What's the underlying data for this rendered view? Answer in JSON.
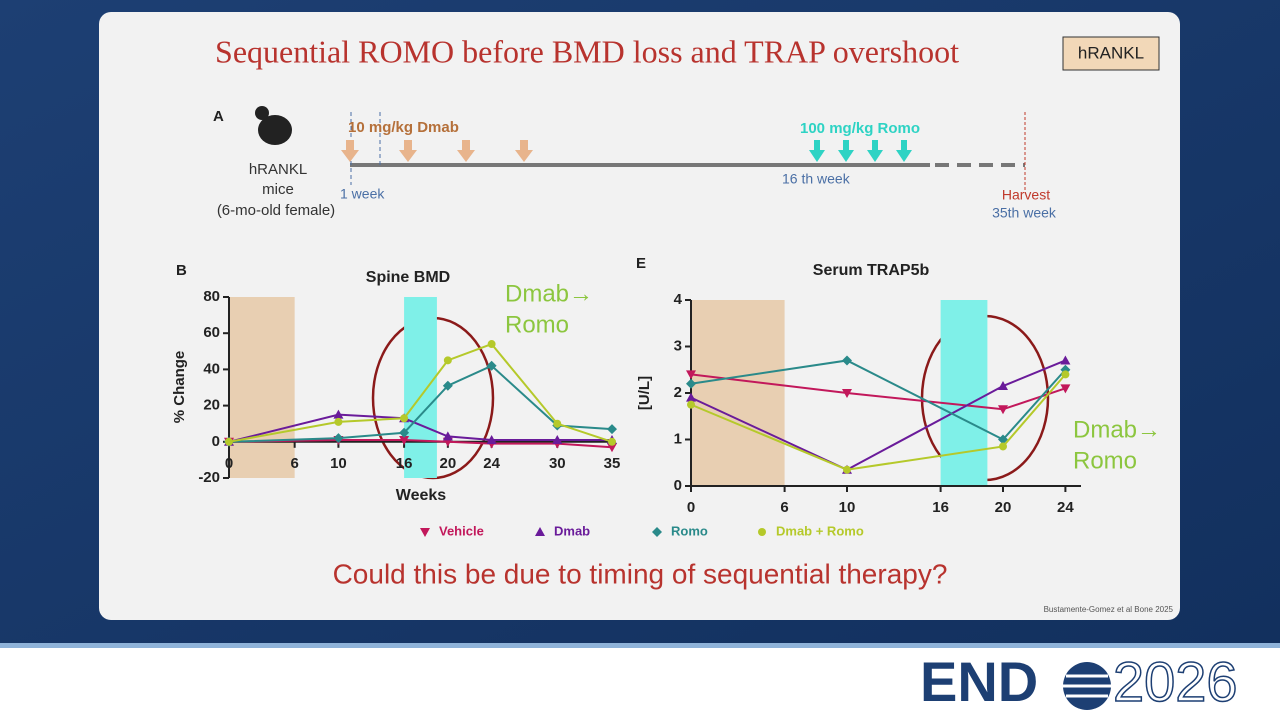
{
  "slide": {
    "title": "Sequential ROMO before BMD loss and TRAP overshoot",
    "badge": "hRANKL",
    "question": "Could this be due to timing of sequential therapy?",
    "citation": "Bustamente-Gomez et al Bone 2025",
    "logo": "END",
    "year": "2026"
  },
  "timeline": {
    "panel": "A",
    "mouse_label": [
      "hRANKL",
      "mice",
      "(6-mo-old female)"
    ],
    "dmab_label": "10 mg/kg Dmab",
    "romo_label": "100 mg/kg Romo",
    "start_label": "1 week",
    "mid_label": "16 th week",
    "harvest_label": "Harvest",
    "end_label": "35th week"
  },
  "chart_data": [
    {
      "type": "line",
      "panel": "B",
      "title": "Spine BMD",
      "x_label": "Weeks",
      "y_label": "% Change",
      "annotation": [
        "Dmab→",
        "Romo"
      ],
      "x": [
        0,
        10,
        16,
        20,
        24,
        30,
        35
      ],
      "xlim": [
        0,
        35
      ],
      "xticks": [
        0,
        6,
        10,
        16,
        20,
        24,
        30,
        35
      ],
      "ylim": [
        -20,
        80
      ],
      "yticks": [
        -20,
        0,
        20,
        40,
        60,
        80
      ],
      "shaded": [
        {
          "range": [
            0,
            6
          ],
          "color": "#e8cfb2"
        },
        {
          "range": [
            16,
            19
          ],
          "color": "#7ff0e8"
        }
      ],
      "series": [
        {
          "name": "Vehicle",
          "color": "#c2185b",
          "marker": "triangle-down",
          "values": [
            0,
            1,
            1,
            0,
            -1,
            -1,
            -3
          ]
        },
        {
          "name": "Dmab",
          "color": "#6a1b9a",
          "marker": "triangle-up",
          "values": [
            0,
            15,
            13,
            3,
            1,
            1,
            1
          ]
        },
        {
          "name": "Romo",
          "color": "#2a8a8a",
          "marker": "diamond",
          "values": [
            0,
            2,
            5,
            31,
            42,
            9,
            7
          ]
        },
        {
          "name": "Dmab + Romo",
          "color": "#b5c92a",
          "marker": "circle",
          "values": [
            0,
            11,
            13,
            45,
            54,
            10,
            0
          ]
        }
      ]
    },
    {
      "type": "line",
      "panel": "E",
      "title": "Serum TRAP5b",
      "y_label": "[U/L]",
      "annotation": [
        "Dmab→",
        "Romo"
      ],
      "x": [
        0,
        10,
        20,
        24
      ],
      "xlim": [
        0,
        25
      ],
      "xticks": [
        0,
        6,
        10,
        16,
        20,
        24
      ],
      "ylim": [
        0,
        4
      ],
      "yticks": [
        0,
        1,
        2,
        3,
        4
      ],
      "shaded": [
        {
          "range": [
            0,
            6
          ],
          "color": "#e8cfb2"
        },
        {
          "range": [
            16,
            19
          ],
          "color": "#7ff0e8"
        }
      ],
      "series": [
        {
          "color": "#c2185b",
          "marker": "triangle-down",
          "values": [
            2.4,
            2.0,
            1.65,
            2.1
          ]
        },
        {
          "color": "#6a1b9a",
          "marker": "triangle-up",
          "values": [
            1.9,
            0.35,
            2.15,
            2.7
          ]
        },
        {
          "color": "#2a8a8a",
          "marker": "diamond",
          "values": [
            2.2,
            2.7,
            1.0,
            2.5
          ]
        },
        {
          "color": "#b5c92a",
          "marker": "circle",
          "values": [
            1.75,
            0.35,
            0.85,
            2.4
          ]
        }
      ]
    }
  ]
}
